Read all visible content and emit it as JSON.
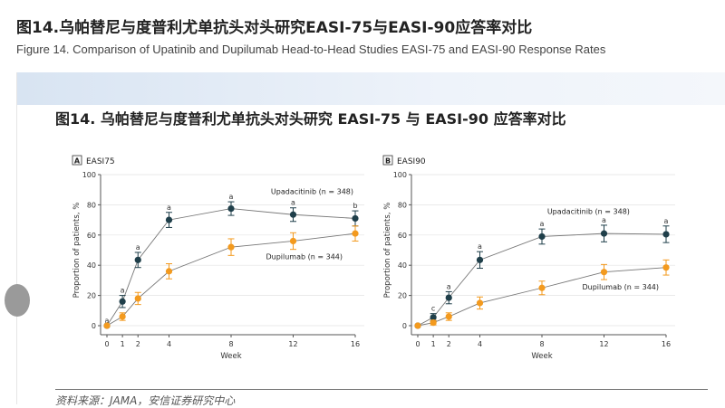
{
  "header": {
    "title": "图14.乌帕替尼与度普利尤单抗头对头研究EASI-75与EASI-90应答率对比",
    "subtitle": "Figure 14. Comparison of Upatinib and Dupilumab Head-to-Head Studies EASI-75 and EASI-90 Response Rates"
  },
  "figure_title": "图14. 乌帕替尼与度普利尤单抗头对头研究 EASI-75 与 EASI-90 应答率对比",
  "source": "资料来源：JAMA，安信证券研究中心",
  "colors": {
    "upadacitinib": "#1f3f4a",
    "dupilumab": "#f39a1e"
  },
  "chart_data": [
    {
      "type": "line",
      "panel": "A",
      "title": "EASI75",
      "xlabel": "Week",
      "ylabel": "Proportion of patients, %",
      "x": [
        0,
        1,
        2,
        4,
        8,
        12,
        16
      ],
      "xticks": [
        "0",
        "1",
        "2",
        "4",
        "8",
        "12",
        "16"
      ],
      "yticks": [
        "0",
        "20",
        "40",
        "60",
        "80",
        "100"
      ],
      "ylim": [
        0,
        100
      ],
      "grid": true,
      "series": [
        {
          "name": "Upadacitinib (n = 348)",
          "values": [
            0,
            16,
            43.5,
            70,
            77.5,
            73.5,
            71
          ],
          "err": [
            0,
            4,
            5,
            5,
            4.5,
            4.5,
            5
          ],
          "annotations": [
            "a",
            "a",
            "a",
            "a",
            "a",
            "a",
            "b"
          ]
        },
        {
          "name": "Dupilumab (n = 344)",
          "values": [
            0,
            6,
            18,
            36,
            52,
            56,
            61
          ],
          "err": [
            0,
            2.5,
            4,
            5,
            5.5,
            5.5,
            5
          ]
        }
      ]
    },
    {
      "type": "line",
      "panel": "B",
      "title": "EASI90",
      "xlabel": "Week",
      "ylabel": "Proportion of patients, %",
      "x": [
        0,
        1,
        2,
        4,
        8,
        12,
        16
      ],
      "xticks": [
        "0",
        "1",
        "2",
        "4",
        "8",
        "12",
        "16"
      ],
      "yticks": [
        "0",
        "20",
        "40",
        "60",
        "80",
        "100"
      ],
      "ylim": [
        0,
        100
      ],
      "grid": true,
      "series": [
        {
          "name": "Upadacitinib (n = 348)",
          "values": [
            0,
            5.5,
            18.5,
            43.5,
            59,
            61,
            60.5
          ],
          "err": [
            0,
            2.5,
            4,
            5.5,
            5,
            5.5,
            5.5
          ],
          "annotations": [
            "",
            "c",
            "a",
            "a",
            "a",
            "a",
            "a"
          ]
        },
        {
          "name": "Dupilumab (n = 344)",
          "values": [
            0,
            2,
            6,
            15,
            25,
            35.5,
            38.5
          ],
          "err": [
            0,
            1.5,
            2.5,
            4,
            4.5,
            5,
            5
          ]
        }
      ]
    }
  ]
}
